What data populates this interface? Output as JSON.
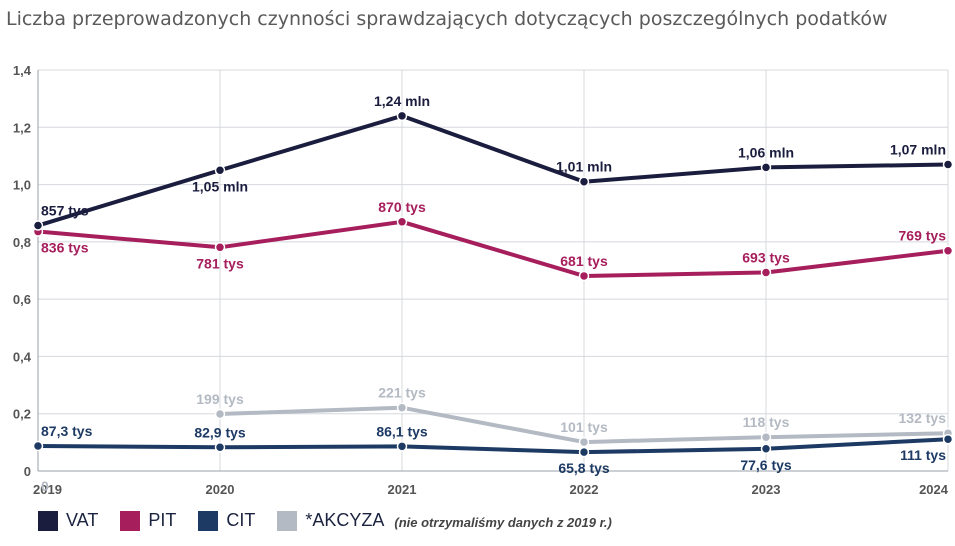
{
  "chart_data": {
    "type": "line",
    "title": "Liczba przeprowadzonych czynności sprawdzających dotyczących poszczególnych podatków",
    "x": [
      "2019",
      "2020",
      "2021",
      "2022",
      "2023",
      "2024"
    ],
    "ylim": [
      0,
      1.4
    ],
    "yticks": [
      "0",
      "0,2",
      "0,4",
      "0,6",
      "0,8",
      "1,0",
      "1,2",
      "1,4"
    ],
    "grid": true,
    "legend_position": "bottom-left",
    "series": [
      {
        "name": "VAT",
        "color": "#1b1d3f",
        "values": [
          0.857,
          1.05,
          1.24,
          1.01,
          1.06,
          1.07
        ],
        "labels": [
          "857 tys",
          "1,05 mln",
          "1,24 mln",
          "1,01 mln",
          "1,06 mln",
          "1,07 mln"
        ]
      },
      {
        "name": "PIT",
        "color": "#a61e5c",
        "values": [
          0.836,
          0.781,
          0.87,
          0.681,
          0.693,
          0.769
        ],
        "labels": [
          "836 tys",
          "781 tys",
          "870 tys",
          "681 tys",
          "693 tys",
          "769 tys"
        ]
      },
      {
        "name": "CIT",
        "color": "#1d3a64",
        "values": [
          0.0873,
          0.0829,
          0.0861,
          0.0658,
          0.0776,
          0.111
        ],
        "labels": [
          "87,3 tys",
          "82,9 tys",
          "86,1 tys",
          "65,8 tys",
          "77,6 tys",
          "111 tys"
        ]
      },
      {
        "name": "*AKCYZA",
        "color": "#b4bac3",
        "values": [
          0,
          0.199,
          0.221,
          0.101,
          0.118,
          0.132
        ],
        "labels": [
          "0",
          "199 tys",
          "221 tys",
          "101 tys",
          "118 tys",
          "132 tys"
        ]
      }
    ]
  },
  "legend_note": "(nie otrzymaliśmy danych z 2019 r.)"
}
